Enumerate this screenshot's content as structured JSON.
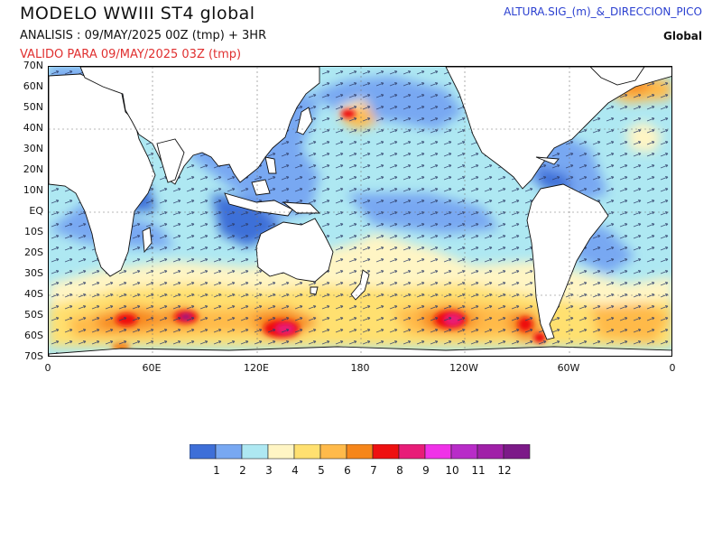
{
  "header": {
    "title": "MODELO  WWIII  ST4  global",
    "analysis": "ANALISIS : 09/MAY/2025 00Z  (tmp) + 3HR",
    "valid": "VALIDO PARA  09/MAY/2025 03Z  (tmp)",
    "field": "ALTURA.SIG_(m)_&_DIRECCION_PICO",
    "region": "Global"
  },
  "map": {
    "lat_labels": [
      "70N",
      "60N",
      "50N",
      "40N",
      "30N",
      "20N",
      "10N",
      "EQ",
      "10S",
      "20S",
      "30S",
      "40S",
      "50S",
      "60S",
      "70S"
    ],
    "lon_labels": [
      "0",
      "60E",
      "120E",
      "180",
      "120W",
      "60W",
      "0"
    ],
    "ocean_base_color": "#aee8f2"
  },
  "legend": {
    "labels": [
      "1",
      "2",
      "3",
      "4",
      "5",
      "6",
      "7",
      "8",
      "9",
      "10",
      "11",
      "12"
    ],
    "colors": [
      "#3e6fd8",
      "#78a8f2",
      "#aee8f2",
      "#fff5c4",
      "#ffe070",
      "#ffba4a",
      "#f6861a",
      "#ee1010",
      "#e81c78",
      "#f032e8",
      "#b82cc8",
      "#a020a8",
      "#7c1a88"
    ]
  }
}
